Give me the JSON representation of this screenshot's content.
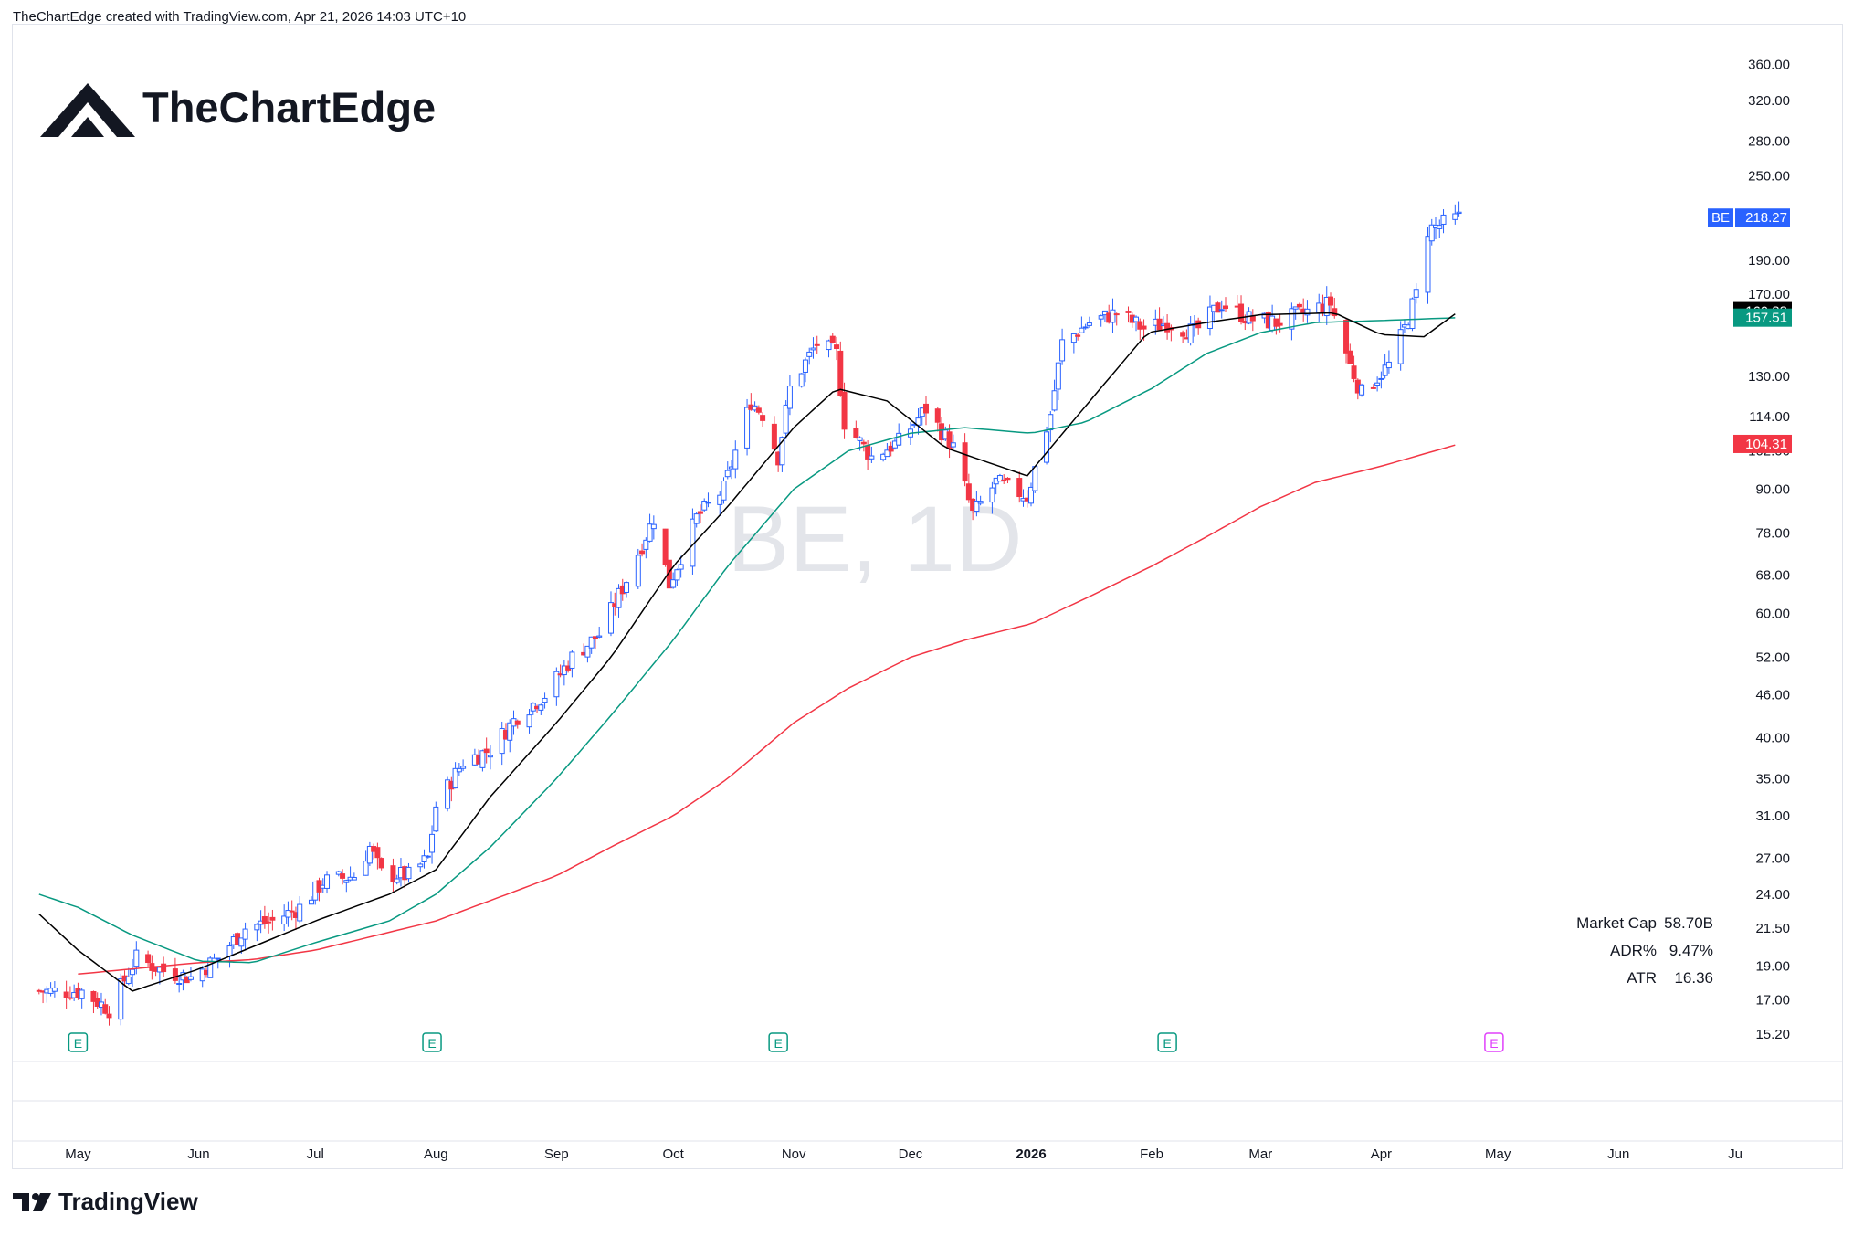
{
  "header": {
    "attribution": "TheChartEdge created with TradingView.com, Apr 21, 2026 14:03 UTC+10"
  },
  "brand": {
    "name": "TheChartEdge"
  },
  "footer": {
    "logo_text": "TradingView"
  },
  "watermark": "BE, 1D",
  "colors": {
    "up": "#2962ff",
    "down": "#f23645",
    "sma_fast": "#000000",
    "sma_mid": "#089981",
    "sma_slow": "#f23645",
    "earnings_past": "#089981",
    "earnings_future": "#e040fb",
    "grid": "#e0e3eb"
  },
  "chart_data": {
    "type": "candlestick",
    "symbol": "BE",
    "interval": "1D",
    "y_scale": "log",
    "ylim": [
      14.5,
      400
    ],
    "grid": false,
    "price_ticks": [
      "360.00",
      "320.00",
      "280.00",
      "250.00",
      "190.00",
      "170.00",
      "130.00",
      "114.00",
      "102.00",
      "90.00",
      "78.00",
      "68.00",
      "60.00",
      "52.00",
      "46.00",
      "40.00",
      "35.00",
      "31.00",
      "27.00",
      "24.00",
      "21.50",
      "19.00",
      "17.00",
      "15.20"
    ],
    "months": [
      {
        "label": "May",
        "date": "2025-05-01"
      },
      {
        "label": "Jun",
        "date": "2025-06-01"
      },
      {
        "label": "Jul",
        "date": "2025-07-01"
      },
      {
        "label": "Aug",
        "date": "2025-08-01"
      },
      {
        "label": "Sep",
        "date": "2025-09-01"
      },
      {
        "label": "Oct",
        "date": "2025-10-01"
      },
      {
        "label": "Nov",
        "date": "2025-11-01"
      },
      {
        "label": "Dec",
        "date": "2025-12-01"
      },
      {
        "label": "2026",
        "date": "2026-01-01"
      },
      {
        "label": "Feb",
        "date": "2026-02-01"
      },
      {
        "label": "Mar",
        "date": "2026-03-01"
      },
      {
        "label": "Apr",
        "date": "2026-04-01"
      },
      {
        "label": "May",
        "date": "2026-05-01"
      },
      {
        "label": "Jun",
        "date": "2026-06-01"
      },
      {
        "label": "Ju",
        "date": "2026-07-01"
      }
    ],
    "last_price": {
      "label": "BE",
      "value": "218.27"
    },
    "ma_labels": [
      {
        "value": "160.88",
        "color": "#000000"
      },
      {
        "value": "157.51",
        "color": "#089981"
      },
      {
        "value": "104.31",
        "color": "#f23645"
      }
    ],
    "earnings": [
      {
        "date": "2025-05-01",
        "upcoming": false
      },
      {
        "date": "2025-07-31",
        "upcoming": false
      },
      {
        "date": "2025-10-28",
        "upcoming": false
      },
      {
        "date": "2026-02-05",
        "upcoming": false
      },
      {
        "date": "2026-04-30",
        "upcoming": true
      }
    ],
    "earnings_marker_label": "E",
    "stats": [
      {
        "label": "Market Cap",
        "value": "58.70B"
      },
      {
        "label": "ADR%",
        "value": "9.47%"
      },
      {
        "label": "ATR",
        "value": "16.36"
      }
    ],
    "price_anchors": [
      [
        "2025-04-21",
        17.5
      ],
      [
        "2025-05-02",
        17.5
      ],
      [
        "2025-05-09",
        16.5
      ],
      [
        "2025-05-16",
        19.5
      ],
      [
        "2025-05-23",
        18.7
      ],
      [
        "2025-05-30",
        18.3
      ],
      [
        "2025-06-06",
        19.5
      ],
      [
        "2025-06-13",
        21.5
      ],
      [
        "2025-06-20",
        22.0
      ],
      [
        "2025-06-27",
        23.0
      ],
      [
        "2025-07-03",
        25.0
      ],
      [
        "2025-07-11",
        25.5
      ],
      [
        "2025-07-15",
        28.0
      ],
      [
        "2025-07-18",
        25.7
      ],
      [
        "2025-07-25",
        25.5
      ],
      [
        "2025-07-30",
        27.0
      ],
      [
        "2025-08-01",
        32.0
      ],
      [
        "2025-08-08",
        37.0
      ],
      [
        "2025-08-15",
        38.5
      ],
      [
        "2025-08-22",
        43.0
      ],
      [
        "2025-08-29",
        46.0
      ],
      [
        "2025-09-05",
        52.0
      ],
      [
        "2025-09-12",
        56.0
      ],
      [
        "2025-09-19",
        67.0
      ],
      [
        "2025-09-26",
        82.0
      ],
      [
        "2025-09-30",
        66.0
      ],
      [
        "2025-10-07",
        82.0
      ],
      [
        "2025-10-14",
        90.0
      ],
      [
        "2025-10-21",
        120.0
      ],
      [
        "2025-10-24",
        115.0
      ],
      [
        "2025-10-28",
        100.0
      ],
      [
        "2025-10-31",
        125.0
      ],
      [
        "2025-11-07",
        145.0
      ],
      [
        "2025-11-12",
        140.0
      ],
      [
        "2025-11-14",
        112.0
      ],
      [
        "2025-11-21",
        100.0
      ],
      [
        "2025-11-28",
        105.0
      ],
      [
        "2025-12-05",
        117.0
      ],
      [
        "2025-12-12",
        103.0
      ],
      [
        "2025-12-17",
        83.0
      ],
      [
        "2025-12-23",
        92.0
      ],
      [
        "2025-12-31",
        88.0
      ],
      [
        "2026-01-06",
        115.0
      ],
      [
        "2026-01-09",
        145.0
      ],
      [
        "2026-01-16",
        155.0
      ],
      [
        "2026-01-23",
        160.0
      ],
      [
        "2026-01-30",
        152.0
      ],
      [
        "2026-02-05",
        155.0
      ],
      [
        "2026-02-12",
        150.0
      ],
      [
        "2026-02-19",
        165.0
      ],
      [
        "2026-02-26",
        157.0
      ],
      [
        "2026-03-05",
        155.0
      ],
      [
        "2026-03-12",
        160.0
      ],
      [
        "2026-03-19",
        165.0
      ],
      [
        "2026-03-24",
        135.0
      ],
      [
        "2026-03-27",
        123.0
      ],
      [
        "2026-04-03",
        135.0
      ],
      [
        "2026-04-07",
        152.0
      ],
      [
        "2026-04-10",
        170.0
      ],
      [
        "2026-04-13",
        210.0
      ],
      [
        "2026-04-21",
        218.27
      ]
    ],
    "sma_fast_anchors": [
      [
        "2025-04-21",
        22.5
      ],
      [
        "2025-05-01",
        20.0
      ],
      [
        "2025-05-15",
        17.5
      ],
      [
        "2025-06-01",
        18.8
      ],
      [
        "2025-07-01",
        22.0
      ],
      [
        "2025-07-20",
        24.0
      ],
      [
        "2025-08-01",
        26.0
      ],
      [
        "2025-08-15",
        33.0
      ],
      [
        "2025-09-01",
        42.0
      ],
      [
        "2025-09-15",
        52.0
      ],
      [
        "2025-10-01",
        70.0
      ],
      [
        "2025-10-15",
        85.0
      ],
      [
        "2025-11-01",
        110.0
      ],
      [
        "2025-11-12",
        125.0
      ],
      [
        "2025-11-25",
        120.0
      ],
      [
        "2025-12-10",
        103.0
      ],
      [
        "2025-12-31",
        94.0
      ],
      [
        "2026-01-15",
        118.0
      ],
      [
        "2026-01-31",
        150.0
      ],
      [
        "2026-02-15",
        155.0
      ],
      [
        "2026-03-01",
        159.0
      ],
      [
        "2026-03-20",
        160.0
      ],
      [
        "2026-04-01",
        149.0
      ],
      [
        "2026-04-12",
        148.0
      ],
      [
        "2026-04-21",
        160.88
      ]
    ],
    "sma_mid_anchors": [
      [
        "2025-04-21",
        24.0
      ],
      [
        "2025-05-01",
        23.0
      ],
      [
        "2025-05-15",
        21.0
      ],
      [
        "2025-06-01",
        19.3
      ],
      [
        "2025-06-15",
        19.2
      ],
      [
        "2025-07-01",
        20.5
      ],
      [
        "2025-07-20",
        22.0
      ],
      [
        "2025-08-01",
        24.0
      ],
      [
        "2025-08-15",
        28.0
      ],
      [
        "2025-09-01",
        35.0
      ],
      [
        "2025-09-15",
        43.0
      ],
      [
        "2025-10-01",
        55.0
      ],
      [
        "2025-10-15",
        70.0
      ],
      [
        "2025-11-01",
        90.0
      ],
      [
        "2025-11-15",
        102.0
      ],
      [
        "2025-12-01",
        108.0
      ],
      [
        "2025-12-15",
        110.0
      ],
      [
        "2026-01-01",
        108.0
      ],
      [
        "2026-01-15",
        112.0
      ],
      [
        "2026-02-01",
        125.0
      ],
      [
        "2026-02-15",
        140.0
      ],
      [
        "2026-03-01",
        150.0
      ],
      [
        "2026-03-15",
        155.0
      ],
      [
        "2026-04-01",
        156.0
      ],
      [
        "2026-04-21",
        157.51
      ]
    ],
    "sma_slow_anchors": [
      [
        "2025-05-01",
        18.5
      ],
      [
        "2025-06-01",
        19.2
      ],
      [
        "2025-06-15",
        19.4
      ],
      [
        "2025-07-01",
        20.0
      ],
      [
        "2025-08-01",
        22.0
      ],
      [
        "2025-09-01",
        25.5
      ],
      [
        "2025-09-15",
        28.0
      ],
      [
        "2025-10-01",
        31.0
      ],
      [
        "2025-10-15",
        35.0
      ],
      [
        "2025-11-01",
        42.0
      ],
      [
        "2025-11-15",
        47.0
      ],
      [
        "2025-12-01",
        52.0
      ],
      [
        "2025-12-15",
        55.0
      ],
      [
        "2026-01-01",
        58.0
      ],
      [
        "2026-01-15",
        63.0
      ],
      [
        "2026-02-01",
        70.0
      ],
      [
        "2026-02-15",
        77.0
      ],
      [
        "2026-03-01",
        85.0
      ],
      [
        "2026-03-15",
        92.0
      ],
      [
        "2026-04-01",
        97.0
      ],
      [
        "2026-04-21",
        104.31
      ]
    ]
  }
}
